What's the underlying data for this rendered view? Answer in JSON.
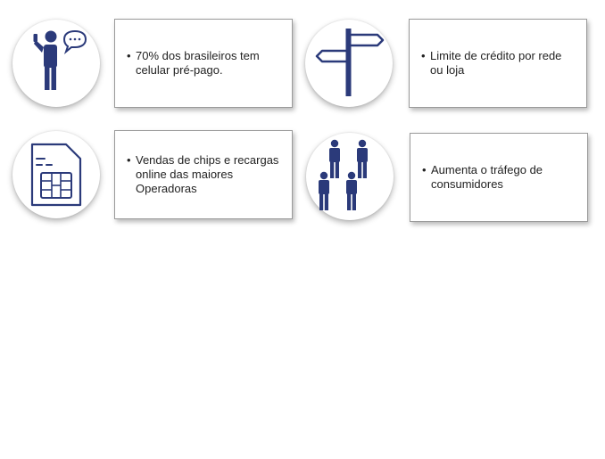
{
  "accent_color": "#2b3a7a",
  "bullet": "•",
  "items": [
    {
      "icon": "person-speech-bubble-icon",
      "text": "70% dos brasileiros tem celular pré-pago."
    },
    {
      "icon": "signpost-icon",
      "text": "Limite de crédito por rede ou loja"
    },
    {
      "icon": "sim-card-icon",
      "text": "Vendas de chips e recargas online das maiores Operadoras"
    },
    {
      "icon": "people-group-icon",
      "text": "Aumenta o tráfego de consumidores"
    }
  ]
}
